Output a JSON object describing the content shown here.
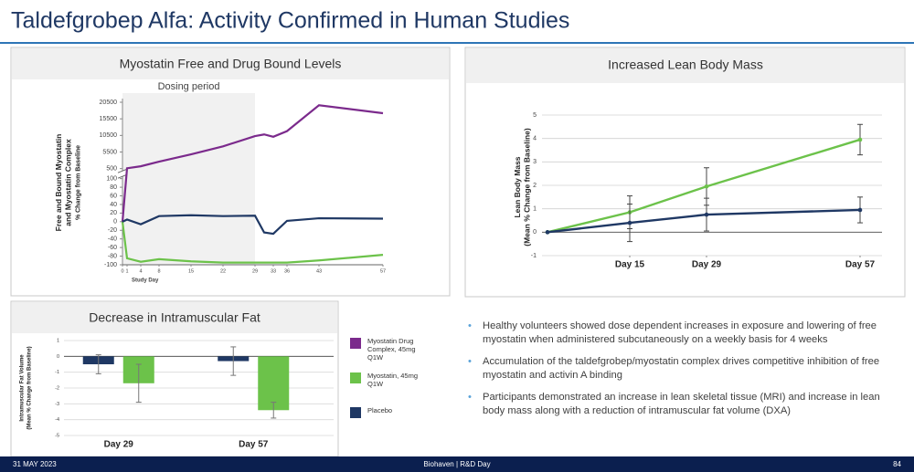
{
  "title": "Taldefgrobep Alfa: Activity Confirmed in Human Studies",
  "bullets": [
    "Healthy volunteers showed dose dependent increases in exposure and lowering of free myostatin when administered subcutaneously on a weekly basis for 4 weeks",
    "Accumulation of the taldefgrobep/myostatin complex drives competitive inhibition of free myostatin and activin A binding",
    "Participants demonstrated an increase in lean skeletal tissue (MRI) and increase in lean body mass along with a reduction of intramuscular fat volume (DXA)"
  ],
  "footer": {
    "date": "31 MAY 2023",
    "event": "Biohaven | R&D Day",
    "page": "84"
  },
  "chart_data": [
    {
      "type": "line",
      "title": "Myostatin Free and Drug Bound Levels",
      "y_label": [
        "Free and Bound Myostatin",
        "and Myostatin Complex",
        "% Change from Baseline"
      ],
      "x_label": "Study Day",
      "shaded": {
        "label": "Dosing period",
        "xrange": [
          0,
          29
        ]
      },
      "x": [
        0,
        1,
        4,
        8,
        15,
        22,
        29,
        31,
        33,
        36,
        43,
        57
      ],
      "xlim": [
        0,
        57
      ],
      "xticks": [
        0,
        1,
        4,
        8,
        15,
        22,
        29,
        33,
        36,
        43,
        57
      ],
      "ylim": [
        -100,
        20500
      ],
      "ybreak": [
        100,
        500
      ],
      "yticks": [
        -100,
        -80,
        -60,
        -40,
        -20,
        0,
        20,
        40,
        60,
        80,
        100,
        500,
        5500,
        10500,
        15500,
        20500
      ],
      "series": [
        {
          "name": "Myostatin Drug Complex, 45mg Q1W",
          "color": "#7b2a8c",
          "values": [
            0,
            600,
            1200,
            2600,
            4800,
            7200,
            10300,
            10800,
            10100,
            11800,
            19600,
            17200
          ]
        },
        {
          "name": "Myostatin, 45mg Q1W",
          "color": "#6cc24a",
          "values": [
            0,
            -85,
            -93,
            -87,
            -92,
            -95,
            -95,
            -95,
            -95,
            -95,
            -90,
            -77
          ]
        },
        {
          "name": "Placebo",
          "color": "#1f3864",
          "values": [
            0,
            5,
            -6,
            13,
            15,
            13,
            14,
            -25,
            -28,
            2,
            8,
            7
          ]
        }
      ]
    },
    {
      "type": "line",
      "title": "Increased Lean Body Mass",
      "y_label": [
        "Lean Body Mass",
        "(Mean % Change from Baseline)"
      ],
      "x": [
        0,
        15,
        29,
        57
      ],
      "xlim": [
        -1,
        61
      ],
      "xticks": [
        {
          "value": 15,
          "label": "Day 15"
        },
        {
          "value": 29,
          "label": "Day 29"
        },
        {
          "value": 57,
          "label": "Day 57"
        }
      ],
      "ylim": [
        -1,
        5
      ],
      "yticks": [
        -1,
        0,
        1,
        2,
        3,
        4,
        5
      ],
      "grid": true,
      "series": [
        {
          "color": "#6cc24a",
          "values": [
            0,
            0.85,
            1.95,
            3.95
          ],
          "errors": [
            0,
            0.7,
            0.8,
            0.65
          ]
        },
        {
          "color": "#1f3864",
          "values": [
            0,
            0.4,
            0.75,
            0.95
          ],
          "errors": [
            0,
            0.8,
            0.7,
            0.55
          ]
        }
      ]
    },
    {
      "type": "bar",
      "title": "Decrease in Intramuscular Fat",
      "y_label": [
        "Intramuscular Fat Volume",
        "(Mean % Change from Baseline)"
      ],
      "categories": [
        "Day 29",
        "Day 57"
      ],
      "ylim": [
        -5,
        1
      ],
      "yticks": [
        1,
        0,
        -1,
        -2,
        -3,
        -4,
        -5
      ],
      "grid": true,
      "series": [
        {
          "color": "#1f3864",
          "values": [
            -0.5,
            -0.3
          ],
          "errors": [
            0.6,
            0.9
          ]
        },
        {
          "color": "#6cc24a",
          "values": [
            -1.7,
            -3.4
          ],
          "errors": [
            1.2,
            0.5
          ]
        }
      ]
    }
  ]
}
